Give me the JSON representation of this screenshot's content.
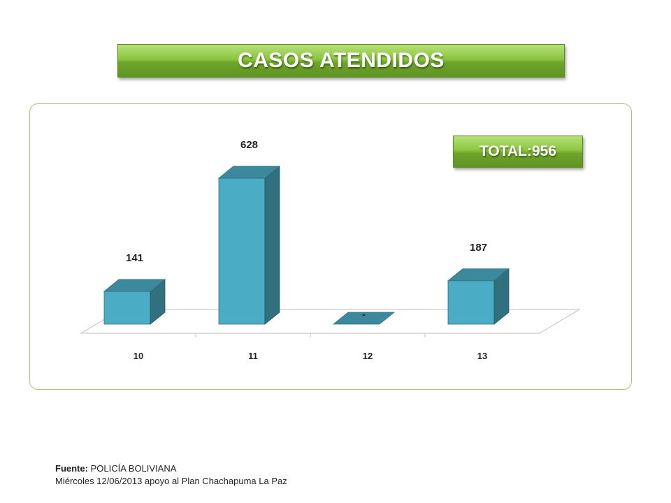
{
  "title": "CASOS ATENDIDOS",
  "total_label": "TOTAL:956",
  "footer": {
    "source_label": "Fuente:",
    "source_value": "POLICÍA BOLIVIANA",
    "note": "Miércoles 12/06/2013 apoyo al Plan Chachapuma La Paz"
  },
  "colors": {
    "bar_front": "#4bacc6",
    "bar_side": "#31707f",
    "bar_top": "#3c889c",
    "title_green": "#8cc63f"
  },
  "chart_data": {
    "type": "bar",
    "style": "3d",
    "categories": [
      "10",
      "11",
      "12",
      "13"
    ],
    "values": [
      141,
      628,
      0,
      187
    ],
    "data_labels": [
      "141",
      "628",
      "-",
      "187"
    ],
    "ylim": [
      0,
      628
    ],
    "grid": false,
    "legend": "none"
  }
}
